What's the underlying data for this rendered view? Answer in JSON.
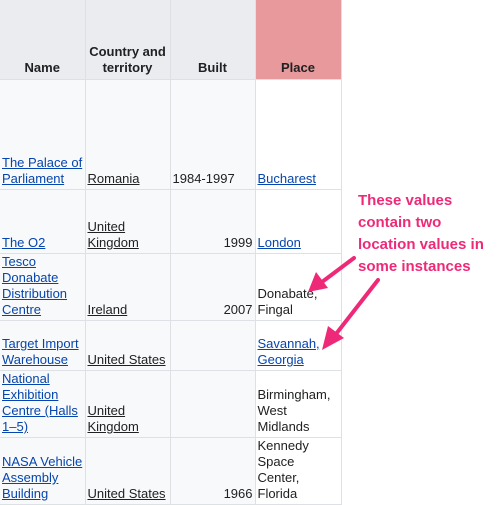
{
  "table": {
    "headers": [
      "Name",
      "Country and territory",
      "Built",
      "Place"
    ],
    "rows": [
      {
        "name": "The Palace of Parliament",
        "country": "Romania",
        "built": "1984-1997",
        "place": "Bucharest"
      },
      {
        "name": "The O2",
        "country": "United Kingdom",
        "built": "1999",
        "place": "London"
      },
      {
        "name": "Tesco Donabate Distribution Centre",
        "country": "Ireland",
        "built": "2007",
        "place": "Donabate, Fingal"
      },
      {
        "name": "Target Import Warehouse",
        "country": "United States",
        "built": "",
        "place": "Savannah, Georgia"
      },
      {
        "name": "National Exhibition Centre (Halls 1–5)",
        "country": "United Kingdom",
        "built": "",
        "place": "Birmingham, West Midlands"
      },
      {
        "name": "NASA Vehicle Assembly Building",
        "country": "United States",
        "built": "1966",
        "place": "Kennedy Space Center, Florida"
      }
    ]
  },
  "annotation": {
    "text": "These values contain two location values in some instances",
    "color": "#ee2a78"
  },
  "colors": {
    "header_bg": "#eaecf0",
    "place_header_bg": "#e8999b",
    "link": "#0645ad"
  }
}
